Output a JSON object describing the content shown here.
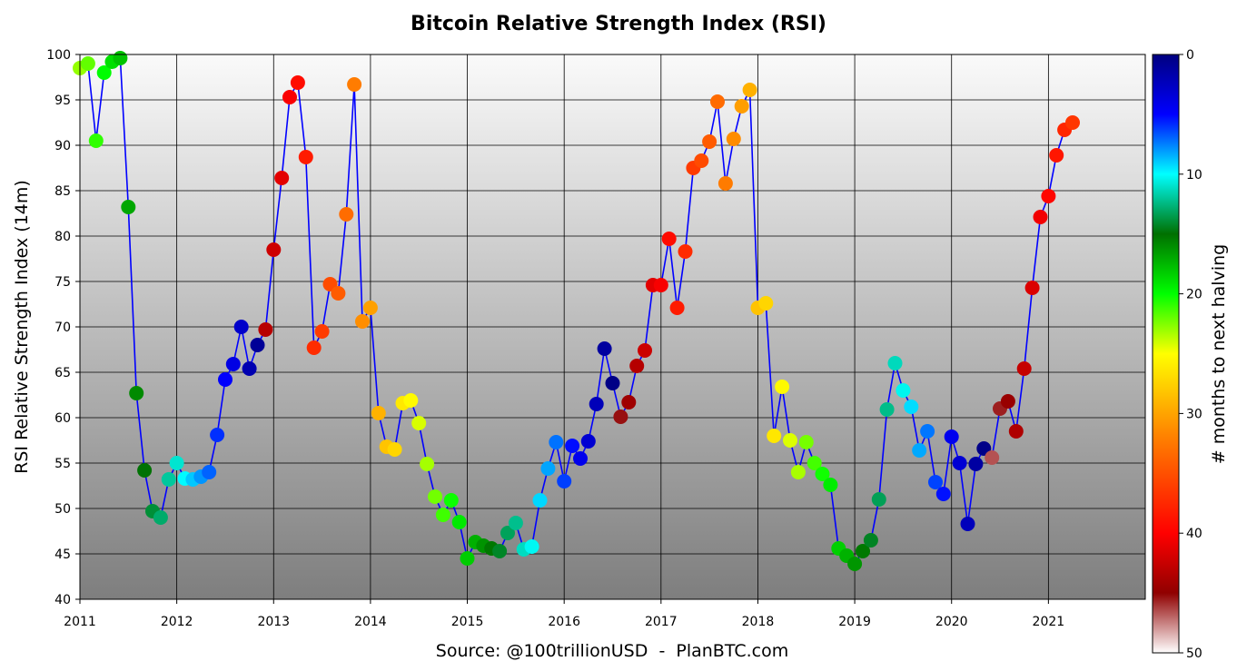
{
  "chart_data": {
    "type": "scatter",
    "title": "Bitcoin Relative Strength Index (RSI)",
    "ylabel": "RSI Relative Strength Index (14m)",
    "colorbar_label": "# months to next halving",
    "source": "Source: @100trillionUSD  -  PlanBTC.com",
    "xlim": [
      2011,
      2022
    ],
    "ylim": [
      40,
      100
    ],
    "x_ticks": [
      2011,
      2012,
      2013,
      2014,
      2015,
      2016,
      2017,
      2018,
      2019,
      2020,
      2021
    ],
    "y_ticks": [
      40,
      45,
      50,
      55,
      60,
      65,
      70,
      75,
      80,
      85,
      90,
      95,
      100
    ],
    "colorbar_ticks": [
      0,
      10,
      20,
      30,
      40,
      50
    ],
    "colorbar_range": [
      0,
      50
    ],
    "colormap_stops": [
      {
        "v": 0,
        "color": "#000080"
      },
      {
        "v": 5,
        "color": "#0000ff"
      },
      {
        "v": 10,
        "color": "#00ffff"
      },
      {
        "v": 15,
        "color": "#007000"
      },
      {
        "v": 20,
        "color": "#00ff00"
      },
      {
        "v": 25,
        "color": "#ffff00"
      },
      {
        "v": 32,
        "color": "#ff8000"
      },
      {
        "v": 40,
        "color": "#ff0000"
      },
      {
        "v": 45,
        "color": "#900000"
      },
      {
        "v": 50,
        "color": "#ffffff"
      }
    ],
    "line_color": "#0000ff",
    "halvings": [
      2012.91,
      2016.52,
      2020.36,
      2024.3
    ],
    "start": 2011.0,
    "step_months": 1,
    "rsi": [
      98.5,
      99.0,
      90.5,
      98.0,
      99.2,
      99.6,
      83.2,
      62.7,
      54.2,
      49.7,
      49.0,
      53.2,
      55.0,
      53.3,
      53.2,
      53.5,
      54.0,
      58.1,
      64.2,
      65.9,
      70.0,
      65.4,
      68.0,
      69.7,
      78.5,
      86.4,
      95.3,
      96.9,
      88.7,
      67.7,
      69.5,
      74.7,
      73.7,
      82.4,
      96.7,
      70.6,
      72.1,
      60.5,
      56.8,
      56.5,
      61.6,
      61.9,
      59.4,
      54.9,
      51.3,
      49.3,
      50.9,
      48.5,
      44.5,
      46.3,
      45.9,
      45.6,
      45.3,
      47.3,
      48.4,
      45.5,
      45.8,
      50.9,
      54.4,
      57.3,
      53.0,
      56.9,
      55.5,
      57.4,
      61.5,
      67.6,
      63.8,
      60.1,
      61.7,
      65.7,
      67.4,
      74.6,
      74.6,
      79.7,
      72.1,
      78.3,
      87.5,
      88.3,
      90.4,
      94.8,
      85.8,
      90.7,
      94.3,
      96.1,
      72.1,
      72.6,
      58.0,
      63.4,
      57.5,
      54.0,
      57.3,
      55.0,
      53.8,
      52.6,
      45.6,
      44.8,
      43.9,
      45.3,
      46.5,
      51.0,
      60.9,
      66.0,
      63.0,
      61.2,
      56.4,
      58.5,
      52.9,
      51.6,
      57.9,
      55.0,
      48.3,
      54.9,
      56.6,
      55.6,
      61.0,
      61.8,
      58.5,
      65.4,
      74.3,
      82.1,
      84.4,
      88.9,
      91.7,
      92.5
    ]
  }
}
